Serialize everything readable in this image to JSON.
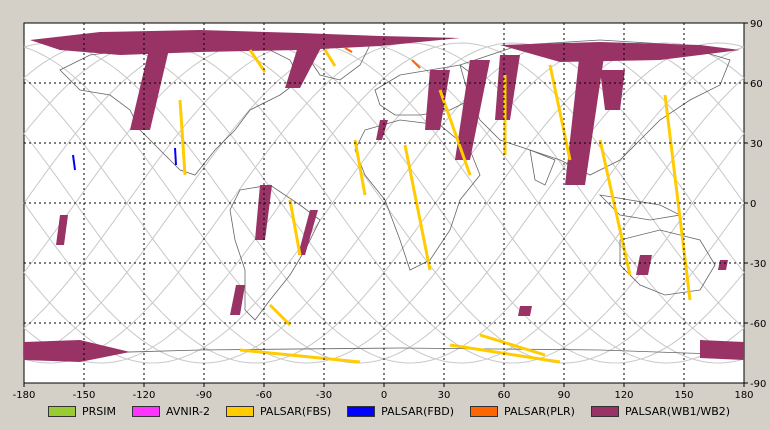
{
  "map": {
    "x_ticks": [
      "-180",
      "-150",
      "-120",
      "-90",
      "-60",
      "-30",
      "0",
      "30",
      "60",
      "90",
      "120",
      "150",
      "180"
    ],
    "y_ticks_right": [
      "90",
      "60",
      "30",
      "0",
      "-30",
      "-60",
      "-90"
    ],
    "bounds": {
      "lon": [
        -180,
        180
      ],
      "lat": [
        -90,
        90
      ]
    },
    "grid_step": {
      "lon": 30,
      "lat": 30
    }
  },
  "legend": [
    {
      "label": "PRSIM",
      "color": "#99cc33"
    },
    {
      "label": "AVNIR-2",
      "color": "#ff33ff"
    },
    {
      "label": "PALSAR(FBS)",
      "color": "#ffcc00"
    },
    {
      "label": "PALSAR(FBD)",
      "color": "#0000ff"
    },
    {
      "label": "PALSAR(PLR)",
      "color": "#ff6600"
    },
    {
      "label": "PALSAR(WB1/WB2)",
      "color": "#993366"
    }
  ]
}
